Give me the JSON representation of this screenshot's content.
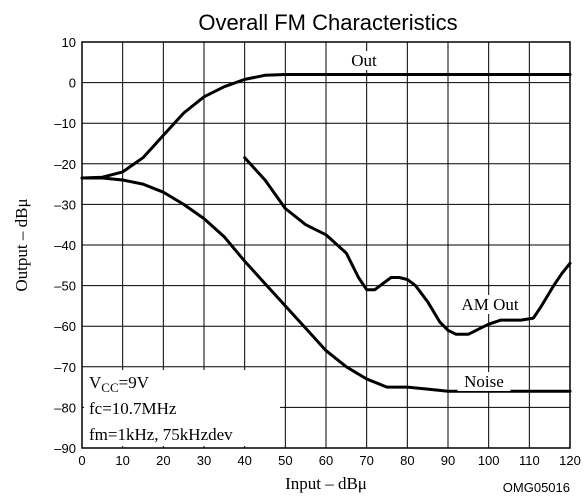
{
  "chart_data": {
    "type": "line",
    "title": "Overall FM Characteristics",
    "xlabel": "Input  –  dBμ",
    "ylabel": "Output  –  dBμ",
    "xlim": [
      0,
      120
    ],
    "ylim": [
      -90,
      10
    ],
    "xticks": [
      0,
      10,
      20,
      30,
      40,
      50,
      60,
      70,
      80,
      90,
      100,
      110,
      120
    ],
    "yticks": [
      10,
      0,
      -10,
      -20,
      -30,
      -40,
      -50,
      -60,
      -70,
      -80,
      -90
    ],
    "xtick_labels": [
      "0",
      "10",
      "20",
      "30",
      "40",
      "50",
      "60",
      "70",
      "80",
      "90",
      "100",
      "110",
      "120"
    ],
    "ytick_labels": [
      "10",
      "0",
      "–10",
      "–20",
      "–30",
      "–40",
      "–50",
      "–60",
      "–70",
      "–80",
      "–90"
    ],
    "grid": true,
    "series": [
      {
        "name": "Out",
        "x": [
          0,
          5,
          10,
          15,
          20,
          25,
          30,
          35,
          40,
          45,
          50,
          60,
          70,
          80,
          90,
          100,
          110,
          120
        ],
        "y": [
          -23.5,
          -23.3,
          -22,
          -18.5,
          -13,
          -7.5,
          -3.5,
          -1,
          0.8,
          1.8,
          2,
          2,
          2,
          2,
          2,
          2,
          2,
          2
        ]
      },
      {
        "name": "AM Out",
        "x": [
          40,
          45,
          50,
          55,
          60,
          65,
          68,
          70,
          72,
          74,
          76,
          78,
          80,
          82,
          85,
          88,
          90,
          92,
          95,
          98,
          100,
          103,
          105,
          108,
          111,
          113,
          116,
          118,
          120
        ],
        "y": [
          -18.5,
          -24,
          -31,
          -35,
          -37.5,
          -42,
          -48,
          -51,
          -51,
          -49.5,
          -48,
          -48,
          -48.5,
          -50,
          -54,
          -59,
          -61,
          -62,
          -62,
          -60.5,
          -59.5,
          -58.5,
          -58.5,
          -58.5,
          -58,
          -55,
          -50,
          -47,
          -44.5
        ]
      },
      {
        "name": "Noise",
        "x": [
          0,
          5,
          10,
          15,
          20,
          25,
          30,
          35,
          40,
          45,
          50,
          55,
          60,
          65,
          70,
          75,
          80,
          85,
          90,
          100,
          110,
          120
        ],
        "y": [
          -23.5,
          -23.5,
          -24,
          -25,
          -27,
          -30,
          -33.5,
          -38,
          -44,
          -49.5,
          -55,
          -60.5,
          -66,
          -70,
          -73,
          -75,
          -75,
          -75.5,
          -76,
          -76,
          -76,
          -76
        ]
      }
    ],
    "series_labels": [
      "Out",
      "AM Out",
      "Noise"
    ],
    "conditions": {
      "vcc_main": "V",
      "vcc_sub": "CC",
      "vcc_value": "=9V",
      "fc": "fc=10.7MHz",
      "fm": "fm=1kHz, 75kHzdev"
    },
    "code": "OMG05016"
  }
}
